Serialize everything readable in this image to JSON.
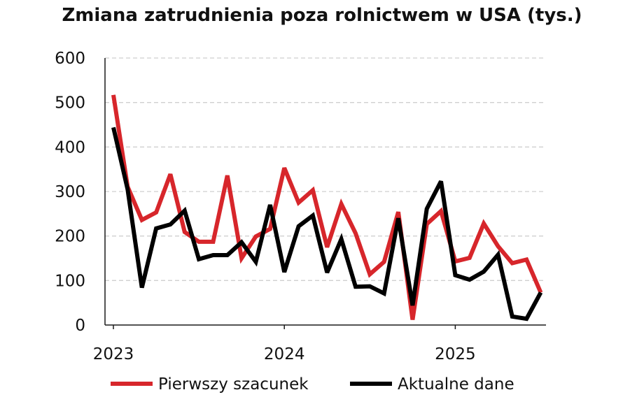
{
  "chart_data": {
    "type": "line",
    "title": "Zmiana zatrudnienia poza rolnictwem w USA (tys.)",
    "xlabel": "",
    "ylabel": "",
    "ylim": [
      0,
      600
    ],
    "yticks": [
      "0",
      "100",
      "200",
      "300",
      "400",
      "500",
      "600"
    ],
    "year_labels": [
      "2023",
      "2024",
      "2025"
    ],
    "year_label_month_index": [
      0,
      12,
      24
    ],
    "grid": true,
    "legend_position": "bottom",
    "months_count": 31,
    "series": [
      {
        "name": "Pierwszy szacunek",
        "color": "#d7262b",
        "values": [
          517,
          311,
          236,
          253,
          339,
          209,
          187,
          187,
          336,
          150,
          199,
          216,
          353,
          275,
          303,
          175,
          272,
          206,
          114,
          142,
          254,
          12,
          227,
          256,
          143,
          151,
          228,
          177,
          139,
          147,
          73
        ]
      },
      {
        "name": "Aktualne dane",
        "color": "#000000",
        "values": [
          444,
          305,
          84,
          217,
          226,
          257,
          148,
          157,
          157,
          186,
          142,
          270,
          119,
          222,
          246,
          118,
          193,
          86,
          87,
          71,
          240,
          44,
          261,
          323,
          112,
          102,
          120,
          158,
          19,
          14,
          73
        ]
      }
    ]
  }
}
